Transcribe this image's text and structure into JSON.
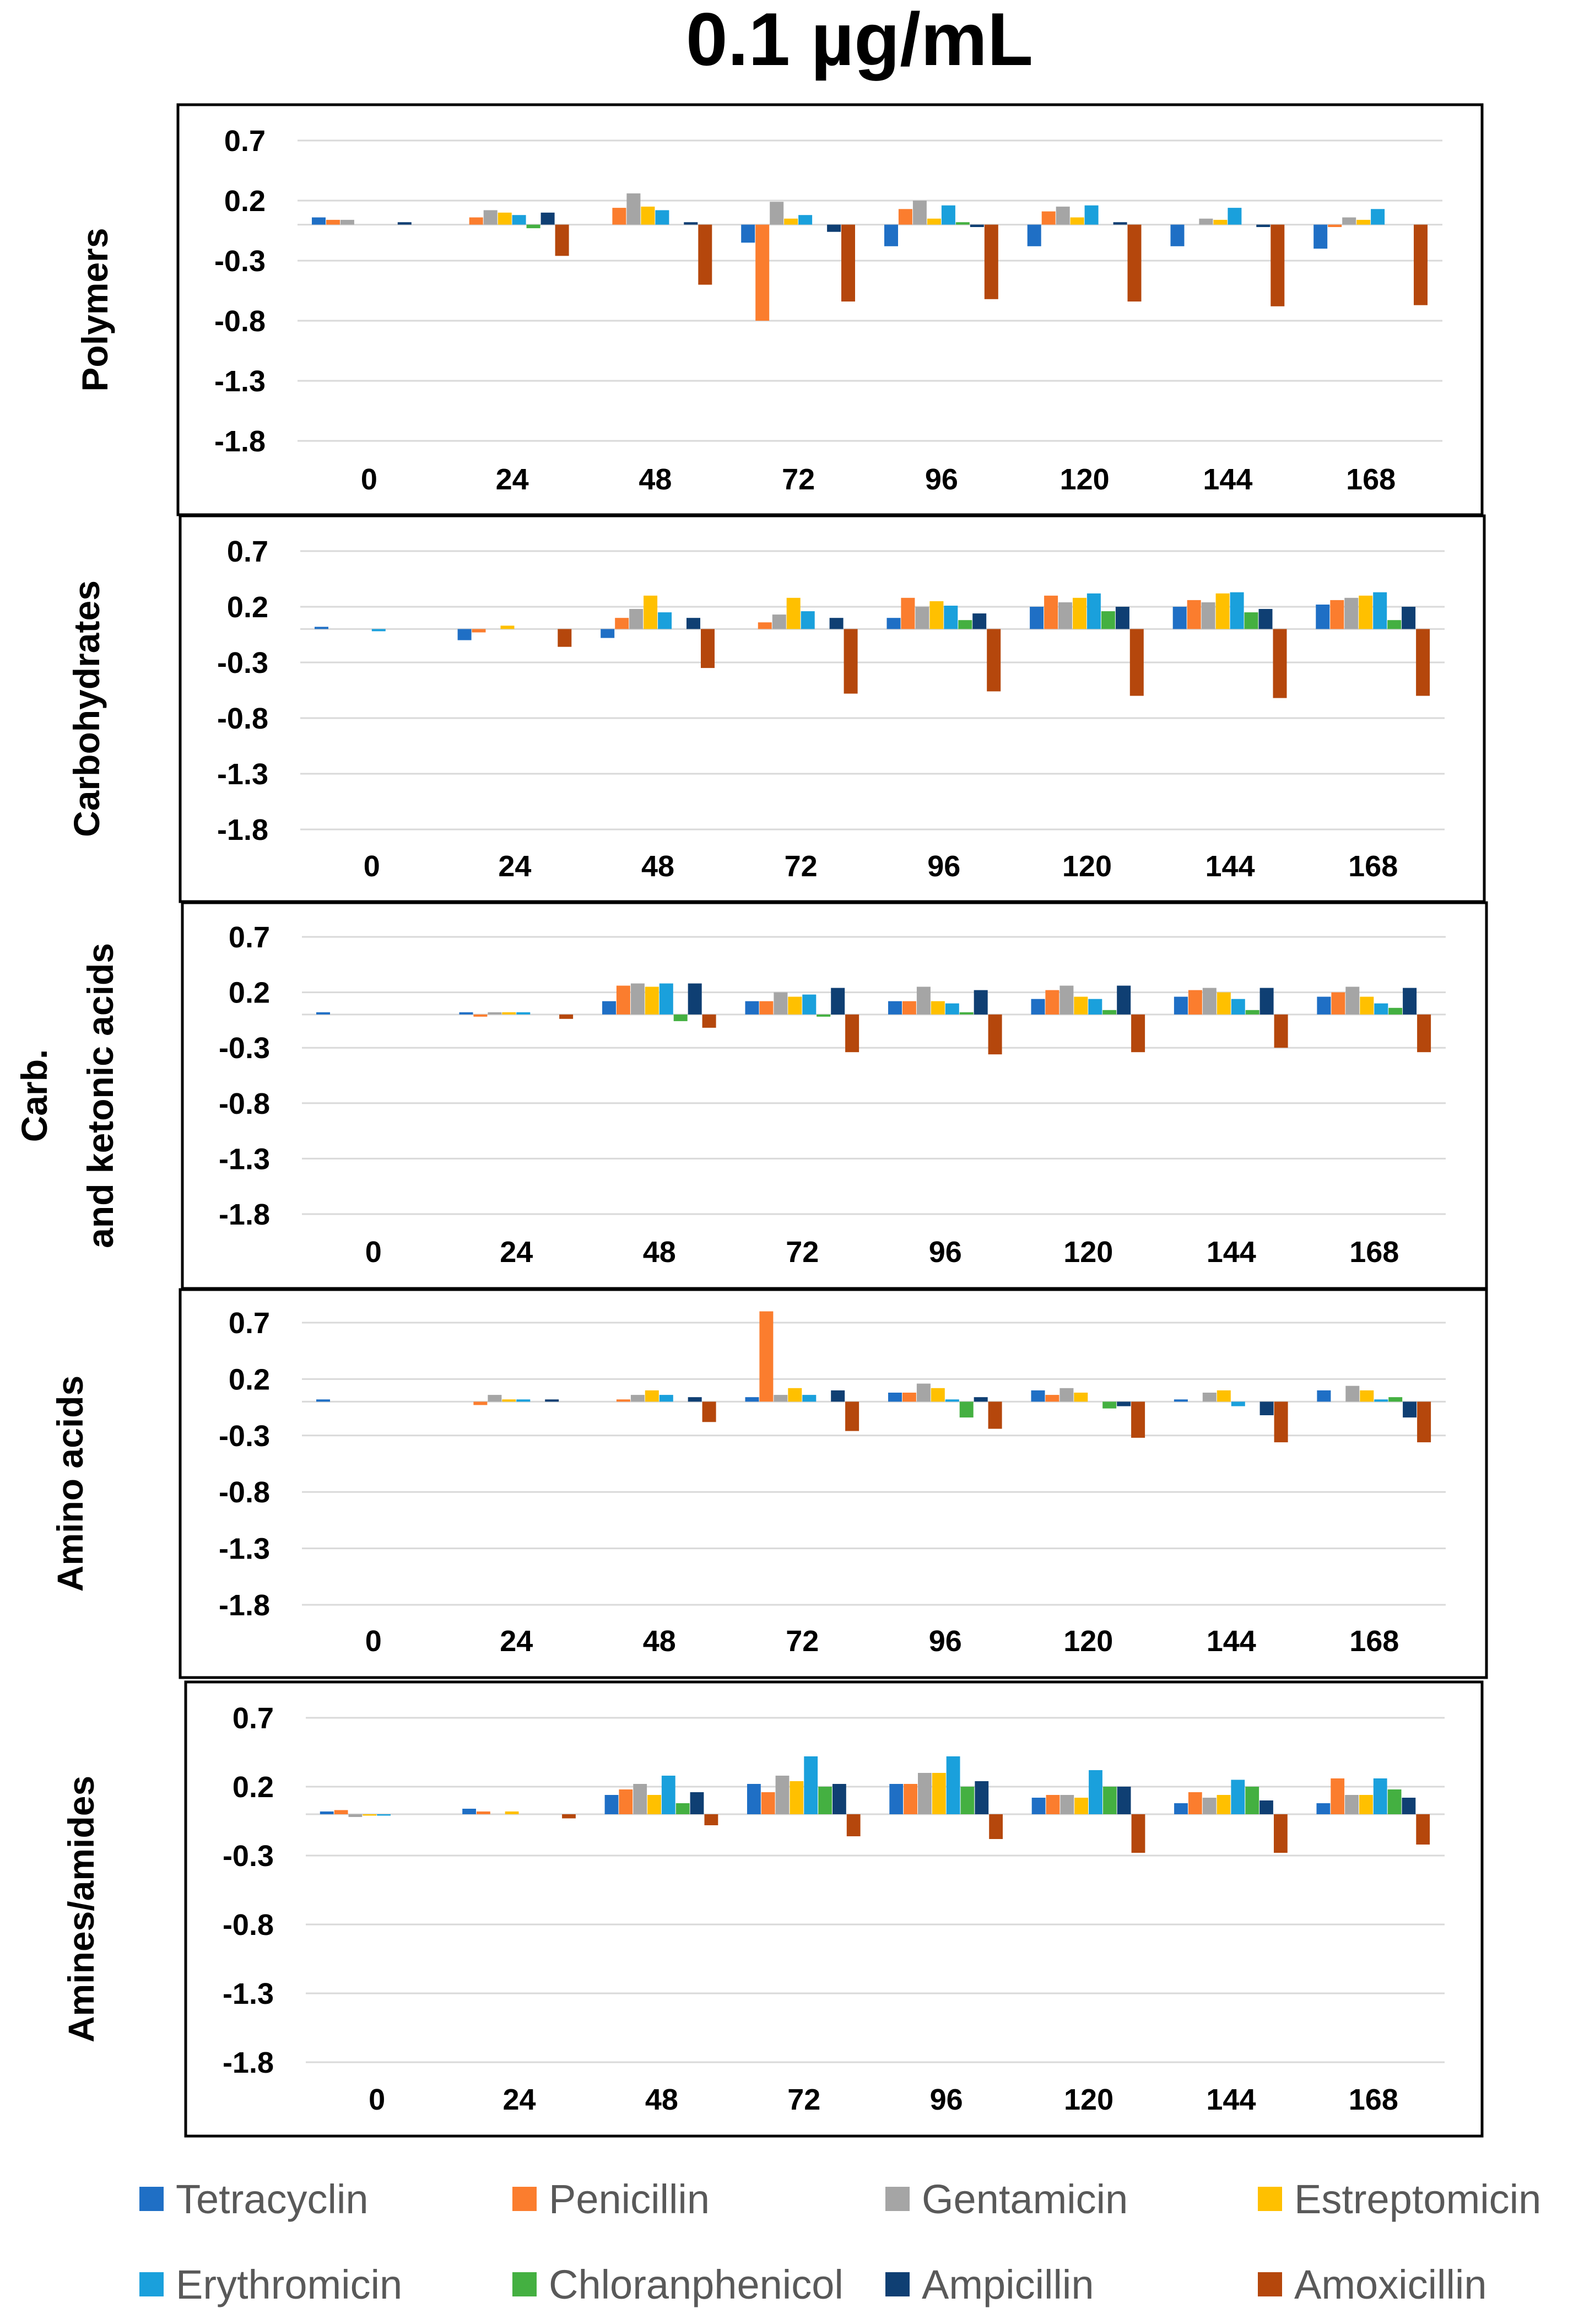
{
  "figure": {
    "title": "0.1 µg/mL"
  },
  "chart_data": {
    "type": "bar",
    "title": "0.1 µg/mL",
    "categories": [
      "0",
      "24",
      "48",
      "72",
      "96",
      "120",
      "144",
      "168"
    ],
    "yticks": [
      "0.7",
      "0.2",
      "-0.3",
      "-0.8",
      "-1.3",
      "-1.8"
    ],
    "ylim": [
      -1.8,
      0.7
    ],
    "legend": [
      {
        "name": "Tetracyclin",
        "color": "#1f6fc5"
      },
      {
        "name": "Penicillin",
        "color": "#fb7d2e"
      },
      {
        "name": "Gentamicin",
        "color": "#a5a5a5"
      },
      {
        "name": "Estreptomicin",
        "color": "#ffc000"
      },
      {
        "name": "Erythromicin",
        "color": "#1aa0dc"
      },
      {
        "name": "Chloranphenicol",
        "color": "#44b041"
      },
      {
        "name": "Ampicillin",
        "color": "#0f3f73"
      },
      {
        "name": "Amoxicillin",
        "color": "#b5470c"
      }
    ],
    "panels": [
      {
        "label": "Polymers",
        "series": [
          {
            "name": "Tetracyclin",
            "values": [
              0.06,
              0.0,
              0.0,
              -0.15,
              -0.18,
              -0.18,
              -0.18,
              -0.2
            ]
          },
          {
            "name": "Penicillin",
            "values": [
              0.04,
              0.06,
              0.14,
              -0.8,
              0.13,
              0.11,
              0.0,
              -0.02
            ]
          },
          {
            "name": "Gentamicin",
            "values": [
              0.04,
              0.12,
              0.26,
              0.19,
              0.2,
              0.15,
              0.05,
              0.06
            ]
          },
          {
            "name": "Estreptomicin",
            "values": [
              0.0,
              0.1,
              0.15,
              0.05,
              0.05,
              0.06,
              0.04,
              0.04
            ]
          },
          {
            "name": "Erythromicin",
            "values": [
              0.0,
              0.08,
              0.12,
              0.08,
              0.16,
              0.16,
              0.14,
              0.13
            ]
          },
          {
            "name": "Chloranphenicol",
            "values": [
              0.0,
              -0.03,
              0.0,
              0.0,
              0.02,
              0.0,
              0.0,
              0.0
            ]
          },
          {
            "name": "Ampicillin",
            "values": [
              0.02,
              0.1,
              0.02,
              -0.06,
              -0.02,
              0.02,
              -0.02,
              0.0
            ]
          },
          {
            "name": "Amoxicillin",
            "values": [
              0.0,
              -0.26,
              -0.5,
              -0.64,
              -0.62,
              -0.64,
              -0.68,
              -0.67
            ]
          }
        ]
      },
      {
        "label": "Carbohydrates",
        "series": [
          {
            "name": "Tetracyclin",
            "values": [
              0.02,
              -0.1,
              -0.08,
              0.0,
              0.1,
              0.2,
              0.2,
              0.22
            ]
          },
          {
            "name": "Penicillin",
            "values": [
              0.0,
              -0.03,
              0.1,
              0.06,
              0.28,
              0.3,
              0.26,
              0.26
            ]
          },
          {
            "name": "Gentamicin",
            "values": [
              0.0,
              0.0,
              0.18,
              0.13,
              0.2,
              0.24,
              0.24,
              0.28
            ]
          },
          {
            "name": "Estreptomicin",
            "values": [
              0.0,
              0.03,
              0.3,
              0.28,
              0.25,
              0.28,
              0.32,
              0.3
            ]
          },
          {
            "name": "Erythromicin",
            "values": [
              -0.02,
              0.0,
              0.15,
              0.16,
              0.21,
              0.32,
              0.33,
              0.33
            ]
          },
          {
            "name": "Chloranphenicol",
            "values": [
              0.0,
              0.0,
              0.0,
              0.0,
              0.08,
              0.16,
              0.15,
              0.08
            ]
          },
          {
            "name": "Ampicillin",
            "values": [
              0.0,
              0.0,
              0.1,
              0.1,
              0.14,
              0.2,
              0.18,
              0.2
            ]
          },
          {
            "name": "Amoxicillin",
            "values": [
              0.0,
              -0.16,
              -0.35,
              -0.58,
              -0.56,
              -0.6,
              -0.62,
              -0.6
            ]
          }
        ]
      },
      {
        "label": "Carb. and ketonic acids",
        "label_lines": [
          "Carb.",
          "and ketonic acids"
        ],
        "series": [
          {
            "name": "Tetracyclin",
            "values": [
              0.02,
              0.02,
              0.12,
              0.12,
              0.12,
              0.14,
              0.16,
              0.16
            ]
          },
          {
            "name": "Penicillin",
            "values": [
              0.0,
              -0.02,
              0.26,
              0.12,
              0.12,
              0.22,
              0.22,
              0.2
            ]
          },
          {
            "name": "Gentamicin",
            "values": [
              0.0,
              0.02,
              0.28,
              0.2,
              0.25,
              0.26,
              0.24,
              0.25
            ]
          },
          {
            "name": "Estreptomicin",
            "values": [
              0.0,
              0.02,
              0.25,
              0.16,
              0.12,
              0.16,
              0.2,
              0.16
            ]
          },
          {
            "name": "Erythromicin",
            "values": [
              0.0,
              0.02,
              0.28,
              0.18,
              0.1,
              0.14,
              0.14,
              0.1
            ]
          },
          {
            "name": "Chloranphenicol",
            "values": [
              0.0,
              0.0,
              -0.06,
              -0.02,
              0.02,
              0.04,
              0.04,
              0.06
            ]
          },
          {
            "name": "Ampicillin",
            "values": [
              0.0,
              0.0,
              0.28,
              0.24,
              0.22,
              0.26,
              0.24,
              0.24
            ]
          },
          {
            "name": "Amoxicillin",
            "values": [
              0.0,
              -0.04,
              -0.12,
              -0.34,
              -0.36,
              -0.34,
              -0.3,
              -0.34
            ]
          }
        ]
      },
      {
        "label": "Amino acids",
        "series": [
          {
            "name": "Tetracyclin",
            "values": [
              0.02,
              0.0,
              0.0,
              0.04,
              0.08,
              0.1,
              0.02,
              0.1
            ]
          },
          {
            "name": "Penicillin",
            "values": [
              0.0,
              -0.03,
              0.02,
              0.8,
              0.08,
              0.06,
              0.0,
              0.0
            ]
          },
          {
            "name": "Gentamicin",
            "values": [
              0.0,
              0.06,
              0.06,
              0.06,
              0.16,
              0.12,
              0.08,
              0.14
            ]
          },
          {
            "name": "Estreptomicin",
            "values": [
              0.0,
              0.02,
              0.1,
              0.12,
              0.12,
              0.08,
              0.1,
              0.1
            ]
          },
          {
            "name": "Erythromicin",
            "values": [
              0.0,
              0.02,
              0.06,
              0.06,
              0.02,
              0.0,
              -0.04,
              0.02
            ]
          },
          {
            "name": "Chloranphenicol",
            "values": [
              0.0,
              0.0,
              0.0,
              0.0,
              -0.14,
              -0.06,
              0.0,
              0.04
            ]
          },
          {
            "name": "Ampicillin",
            "values": [
              0.0,
              0.02,
              0.04,
              0.1,
              0.04,
              -0.04,
              -0.12,
              -0.14
            ]
          },
          {
            "name": "Amoxicillin",
            "values": [
              0.0,
              0.0,
              -0.18,
              -0.26,
              -0.24,
              -0.32,
              -0.36,
              -0.36
            ]
          }
        ]
      },
      {
        "label": "Amines/amides",
        "series": [
          {
            "name": "Tetracyclin",
            "values": [
              0.02,
              0.04,
              0.14,
              0.22,
              0.22,
              0.12,
              0.08,
              0.08
            ]
          },
          {
            "name": "Penicillin",
            "values": [
              0.03,
              0.02,
              0.18,
              0.16,
              0.22,
              0.14,
              0.16,
              0.26
            ]
          },
          {
            "name": "Gentamicin",
            "values": [
              -0.02,
              0.0,
              0.22,
              0.28,
              0.3,
              0.14,
              0.12,
              0.14
            ]
          },
          {
            "name": "Estreptomicin",
            "values": [
              -0.01,
              0.02,
              0.14,
              0.24,
              0.3,
              0.12,
              0.14,
              0.14
            ]
          },
          {
            "name": "Erythromicin",
            "values": [
              -0.01,
              0.0,
              0.28,
              0.42,
              0.42,
              0.32,
              0.25,
              0.26
            ]
          },
          {
            "name": "Chloranphenicol",
            "values": [
              0.0,
              0.0,
              0.08,
              0.2,
              0.2,
              0.2,
              0.2,
              0.18
            ]
          },
          {
            "name": "Ampicillin",
            "values": [
              0.0,
              0.0,
              0.16,
              0.22,
              0.24,
              0.2,
              0.1,
              0.12
            ]
          },
          {
            "name": "Amoxicillin",
            "values": [
              0.0,
              -0.03,
              -0.08,
              -0.16,
              -0.18,
              -0.28,
              -0.28,
              -0.22
            ]
          }
        ]
      }
    ]
  }
}
